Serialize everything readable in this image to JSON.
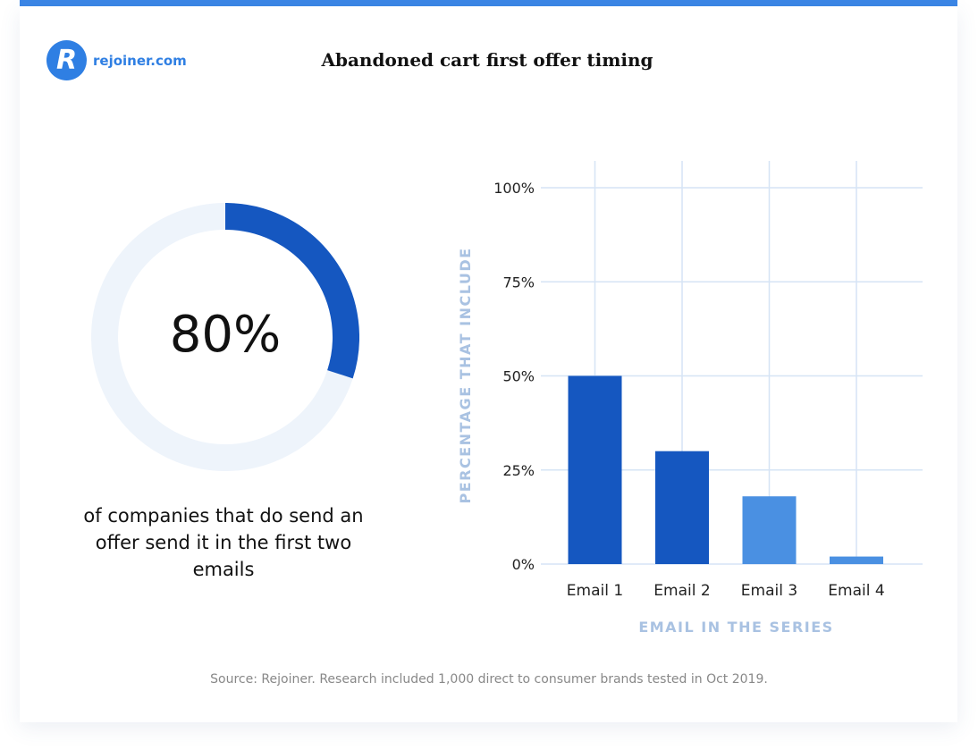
{
  "colors": {
    "accent": "#3b86e6",
    "dark_bar": "#1557c0",
    "light_bar": "#4a90e2",
    "track": "#eef4fb",
    "grid": "#d6e4f5",
    "axis_title": "#a9c2e2"
  },
  "logo": {
    "icon": "rejoiner-r-logo-icon",
    "mark": "R",
    "text": "rejoiner.com"
  },
  "title": "Abandoned cart first offer timing",
  "donut": {
    "value_percent": 80,
    "label": "80%",
    "caption": "of companies that do send an offer send it in the first two emails"
  },
  "chart_data": {
    "type": "bar",
    "categories": [
      "Email 1",
      "Email 2",
      "Email 3",
      "Email 4"
    ],
    "values": [
      50,
      30,
      18,
      2
    ],
    "bar_colors": [
      "#1557c0",
      "#1557c0",
      "#4a90e2",
      "#4a90e2"
    ],
    "xlabel": "EMAIL IN THE SERIES",
    "ylabel": "PERCENTAGE THAT INCLUDE",
    "yticks": [
      0,
      25,
      50,
      75,
      100
    ],
    "ytick_labels": [
      "0%",
      "25%",
      "50%",
      "75%",
      "100%"
    ],
    "ylim": [
      0,
      100
    ],
    "grid": true
  },
  "source": "Source: Rejoiner. Research included 1,000 direct to consumer brands tested in Oct 2019."
}
